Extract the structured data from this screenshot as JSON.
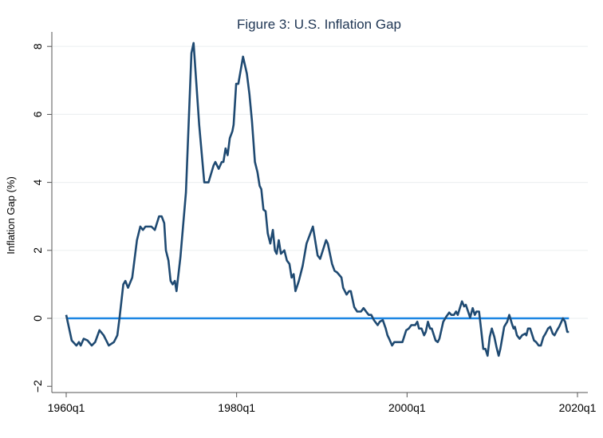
{
  "chart_data": {
    "type": "line",
    "title": "Figure 3: U.S. Inflation Gap",
    "xlabel": "",
    "ylabel": "Inflation Gap (%)",
    "xlim": [
      1960,
      2020
    ],
    "ylim": [
      -2,
      8
    ],
    "x_ticks": [
      {
        "value": 1960,
        "label": "1960q1"
      },
      {
        "value": 1980,
        "label": "1980q1"
      },
      {
        "value": 2000,
        "label": "2000q1"
      },
      {
        "value": 2020,
        "label": "2020q1"
      }
    ],
    "y_ticks": [
      {
        "value": -2,
        "label": "−2"
      },
      {
        "value": 0,
        "label": "0"
      },
      {
        "value": 2,
        "label": "2"
      },
      {
        "value": 4,
        "label": "4"
      },
      {
        "value": 6,
        "label": "6"
      },
      {
        "value": 8,
        "label": "8"
      }
    ],
    "grid": true,
    "colors": {
      "series": "#1f4a72",
      "reference": "#1b86e3",
      "grid": "#eef0f2",
      "title": "#1e3553"
    },
    "reference_line": {
      "name": "zero",
      "value": 0
    },
    "series": [
      {
        "name": "Inflation Gap",
        "points": [
          [
            1960.0,
            0.1
          ],
          [
            1960.65,
            -0.65
          ],
          [
            1961.2,
            -0.8
          ],
          [
            1961.5,
            -0.7
          ],
          [
            1961.7,
            -0.8
          ],
          [
            1962.05,
            -0.6
          ],
          [
            1962.5,
            -0.65
          ],
          [
            1963.0,
            -0.8
          ],
          [
            1963.4,
            -0.7
          ],
          [
            1963.9,
            -0.35
          ],
          [
            1964.4,
            -0.5
          ],
          [
            1965.0,
            -0.8
          ],
          [
            1965.6,
            -0.7
          ],
          [
            1966.0,
            -0.5
          ],
          [
            1966.25,
            0.0
          ],
          [
            1966.7,
            1.0
          ],
          [
            1966.95,
            1.1
          ],
          [
            1967.25,
            0.9
          ],
          [
            1967.75,
            1.2
          ],
          [
            1968.3,
            2.3
          ],
          [
            1968.7,
            2.7
          ],
          [
            1969.0,
            2.6
          ],
          [
            1969.3,
            2.7
          ],
          [
            1970.0,
            2.7
          ],
          [
            1970.4,
            2.6
          ],
          [
            1970.9,
            3.0
          ],
          [
            1971.2,
            3.0
          ],
          [
            1971.5,
            2.8
          ],
          [
            1971.7,
            2.0
          ],
          [
            1972.0,
            1.7
          ],
          [
            1972.25,
            1.1
          ],
          [
            1972.5,
            1.0
          ],
          [
            1972.75,
            1.1
          ],
          [
            1972.95,
            0.8
          ],
          [
            1973.4,
            1.8
          ],
          [
            1974.05,
            3.7
          ],
          [
            1974.7,
            7.8
          ],
          [
            1974.95,
            8.1
          ],
          [
            1975.3,
            6.8
          ],
          [
            1975.6,
            5.7
          ],
          [
            1976.2,
            4.0
          ],
          [
            1976.7,
            4.0
          ],
          [
            1977.3,
            4.5
          ],
          [
            1977.5,
            4.6
          ],
          [
            1977.9,
            4.4
          ],
          [
            1978.25,
            4.6
          ],
          [
            1978.45,
            4.6
          ],
          [
            1978.7,
            5.0
          ],
          [
            1978.95,
            4.8
          ],
          [
            1979.2,
            5.3
          ],
          [
            1979.5,
            5.5
          ],
          [
            1979.65,
            5.7
          ],
          [
            1979.95,
            6.9
          ],
          [
            1980.2,
            6.9
          ],
          [
            1980.75,
            7.7
          ],
          [
            1981.2,
            7.2
          ],
          [
            1981.5,
            6.6
          ],
          [
            1981.8,
            5.8
          ],
          [
            1982.15,
            4.6
          ],
          [
            1982.45,
            4.3
          ],
          [
            1982.7,
            3.9
          ],
          [
            1982.9,
            3.8
          ],
          [
            1983.15,
            3.2
          ],
          [
            1983.4,
            3.15
          ],
          [
            1983.65,
            2.5
          ],
          [
            1983.95,
            2.2
          ],
          [
            1984.25,
            2.6
          ],
          [
            1984.5,
            2.0
          ],
          [
            1984.7,
            1.9
          ],
          [
            1984.95,
            2.3
          ],
          [
            1985.2,
            1.9
          ],
          [
            1985.6,
            2.0
          ],
          [
            1985.9,
            1.7
          ],
          [
            1986.2,
            1.6
          ],
          [
            1986.45,
            1.2
          ],
          [
            1986.7,
            1.3
          ],
          [
            1986.9,
            0.8
          ],
          [
            1987.3,
            1.1
          ],
          [
            1987.75,
            1.55
          ],
          [
            1988.2,
            2.2
          ],
          [
            1988.5,
            2.4
          ],
          [
            1988.95,
            2.7
          ],
          [
            1989.5,
            1.85
          ],
          [
            1989.8,
            1.75
          ],
          [
            1990.5,
            2.3
          ],
          [
            1990.7,
            2.2
          ],
          [
            1991.2,
            1.6
          ],
          [
            1991.5,
            1.4
          ],
          [
            1991.8,
            1.35
          ],
          [
            1992.3,
            1.2
          ],
          [
            1992.5,
            0.9
          ],
          [
            1992.9,
            0.7
          ],
          [
            1993.2,
            0.8
          ],
          [
            1993.4,
            0.8
          ],
          [
            1993.8,
            0.33
          ],
          [
            1994.15,
            0.2
          ],
          [
            1994.6,
            0.2
          ],
          [
            1994.9,
            0.3
          ],
          [
            1995.25,
            0.18
          ],
          [
            1995.5,
            0.1
          ],
          [
            1995.8,
            0.1
          ],
          [
            1996.1,
            -0.05
          ],
          [
            1996.55,
            -0.2
          ],
          [
            1996.8,
            -0.1
          ],
          [
            1997.15,
            -0.05
          ],
          [
            1997.5,
            -0.3
          ],
          [
            1997.7,
            -0.5
          ],
          [
            1997.9,
            -0.6
          ],
          [
            1998.25,
            -0.8
          ],
          [
            1998.5,
            -0.7
          ],
          [
            1999.45,
            -0.7
          ],
          [
            1999.9,
            -0.35
          ],
          [
            2000.2,
            -0.3
          ],
          [
            2000.5,
            -0.2
          ],
          [
            2000.95,
            -0.2
          ],
          [
            2001.2,
            -0.1
          ],
          [
            2001.4,
            -0.3
          ],
          [
            2001.7,
            -0.3
          ],
          [
            2002.0,
            -0.5
          ],
          [
            2002.2,
            -0.4
          ],
          [
            2002.45,
            -0.1
          ],
          [
            2002.7,
            -0.3
          ],
          [
            2002.9,
            -0.3
          ],
          [
            2003.35,
            -0.65
          ],
          [
            2003.6,
            -0.7
          ],
          [
            2003.8,
            -0.6
          ],
          [
            2004.25,
            -0.1
          ],
          [
            2004.6,
            0.05
          ],
          [
            2004.95,
            0.17
          ],
          [
            2005.2,
            0.1
          ],
          [
            2005.5,
            0.1
          ],
          [
            2005.75,
            0.2
          ],
          [
            2005.95,
            0.1
          ],
          [
            2006.45,
            0.5
          ],
          [
            2006.7,
            0.35
          ],
          [
            2006.9,
            0.4
          ],
          [
            2007.1,
            0.25
          ],
          [
            2007.4,
            0.02
          ],
          [
            2007.7,
            0.3
          ],
          [
            2007.95,
            0.1
          ],
          [
            2008.15,
            0.2
          ],
          [
            2008.45,
            0.2
          ],
          [
            2008.7,
            -0.35
          ],
          [
            2008.95,
            -0.9
          ],
          [
            2009.2,
            -0.9
          ],
          [
            2009.45,
            -1.1
          ],
          [
            2009.7,
            -0.55
          ],
          [
            2009.95,
            -0.3
          ],
          [
            2010.25,
            -0.55
          ],
          [
            2010.5,
            -0.85
          ],
          [
            2010.75,
            -1.1
          ],
          [
            2010.95,
            -0.9
          ],
          [
            2011.4,
            -0.25
          ],
          [
            2011.75,
            -0.1
          ],
          [
            2012.0,
            0.1
          ],
          [
            2012.3,
            -0.15
          ],
          [
            2012.5,
            -0.3
          ],
          [
            2012.65,
            -0.25
          ],
          [
            2012.9,
            -0.5
          ],
          [
            2013.2,
            -0.6
          ],
          [
            2013.5,
            -0.5
          ],
          [
            2013.85,
            -0.45
          ],
          [
            2014.0,
            -0.5
          ],
          [
            2014.2,
            -0.3
          ],
          [
            2014.45,
            -0.3
          ],
          [
            2014.9,
            -0.65
          ],
          [
            2015.15,
            -0.7
          ],
          [
            2015.45,
            -0.8
          ],
          [
            2015.7,
            -0.8
          ],
          [
            2016.0,
            -0.55
          ],
          [
            2016.25,
            -0.45
          ],
          [
            2016.55,
            -0.3
          ],
          [
            2016.8,
            -0.25
          ],
          [
            2017.1,
            -0.45
          ],
          [
            2017.3,
            -0.5
          ],
          [
            2017.6,
            -0.35
          ],
          [
            2017.85,
            -0.25
          ],
          [
            2018.3,
            0.0
          ],
          [
            2018.55,
            -0.1
          ],
          [
            2018.8,
            -0.4
          ],
          [
            2019.0,
            -0.4
          ]
        ]
      }
    ]
  }
}
